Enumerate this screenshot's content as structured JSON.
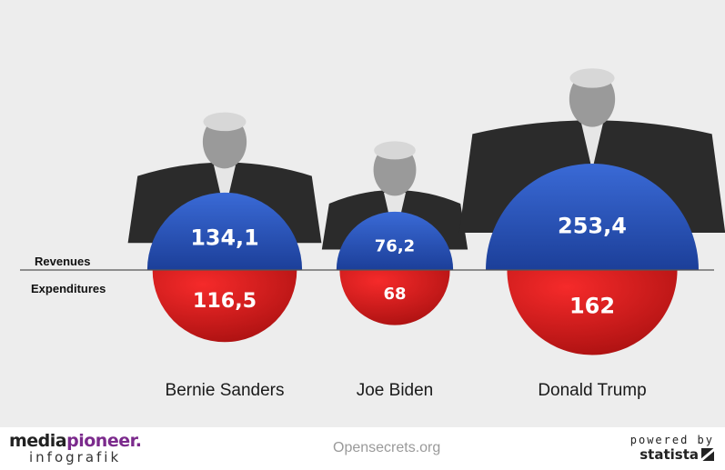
{
  "chart_data": {
    "type": "semicircle-comparison",
    "unit": "",
    "legend": {
      "top": "Revenues",
      "bottom": "Expenditures"
    },
    "categories": [
      "Bernie Sanders",
      "Joe Biden",
      "Donald Trump"
    ],
    "series": [
      {
        "name": "Revenues",
        "values": [
          134.1,
          76.2,
          253.4
        ],
        "labels": [
          "134,1",
          "76,2",
          "253,4"
        ],
        "color": "#2452b8"
      },
      {
        "name": "Expenditures",
        "values": [
          116.5,
          68,
          162
        ],
        "labels": [
          "116,5",
          "68",
          "162"
        ],
        "color": "#d81818"
      }
    ]
  },
  "colors": {
    "revenue_light": "#3a6ad6",
    "revenue_dark": "#1c3f99",
    "expenditure_light": "#f52a2a",
    "expenditure_dark": "#a81010",
    "background": "#ededed"
  },
  "footer": {
    "brand_main": "mediapioneer.",
    "brand_main_plain": "media",
    "brand_main_accent": "pioneer.",
    "brand_sub": "infografik",
    "source": "Opensecrets.org",
    "powered_by": "powered by",
    "powered_brand": "statista",
    "statista_icon": "statista-logo-icon"
  }
}
